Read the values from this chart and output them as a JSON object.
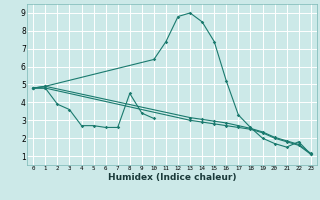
{
  "xlabel": "Humidex (Indice chaleur)",
  "background_color": "#cce9e8",
  "grid_color": "#ffffff",
  "line_color": "#1a7a6e",
  "xlim": [
    -0.5,
    23.5
  ],
  "ylim": [
    0.5,
    9.5
  ],
  "xticks": [
    0,
    1,
    2,
    3,
    4,
    5,
    6,
    7,
    8,
    9,
    10,
    11,
    12,
    13,
    14,
    15,
    16,
    17,
    18,
    19,
    20,
    21,
    22,
    23
  ],
  "yticks": [
    1,
    2,
    3,
    4,
    5,
    6,
    7,
    8,
    9
  ],
  "series": [
    {
      "x": [
        0,
        1,
        2,
        3,
        4,
        5,
        6,
        7,
        8,
        9,
        10
      ],
      "y": [
        4.8,
        4.8,
        3.9,
        3.6,
        2.7,
        2.7,
        2.6,
        2.6,
        4.5,
        3.4,
        3.1
      ]
    },
    {
      "x": [
        0,
        1,
        10,
        11,
        12,
        13,
        14,
        15,
        16,
        17,
        18,
        19,
        20,
        21,
        22,
        23
      ],
      "y": [
        4.8,
        4.9,
        6.4,
        7.4,
        8.8,
        9.0,
        8.5,
        7.4,
        5.2,
        3.3,
        2.6,
        2.0,
        1.7,
        1.5,
        1.8,
        1.1
      ]
    },
    {
      "x": [
        0,
        1,
        13,
        14,
        15,
        16,
        17,
        18,
        19,
        20,
        21,
        22,
        23
      ],
      "y": [
        4.8,
        4.8,
        3.0,
        2.9,
        2.8,
        2.7,
        2.6,
        2.5,
        2.3,
        2.0,
        1.8,
        1.6,
        1.1
      ]
    },
    {
      "x": [
        0,
        1,
        13,
        14,
        15,
        16,
        17,
        18,
        19,
        20,
        21,
        22,
        23
      ],
      "y": [
        4.8,
        4.9,
        3.15,
        3.05,
        2.95,
        2.85,
        2.7,
        2.55,
        2.35,
        2.05,
        1.85,
        1.65,
        1.15
      ]
    }
  ]
}
